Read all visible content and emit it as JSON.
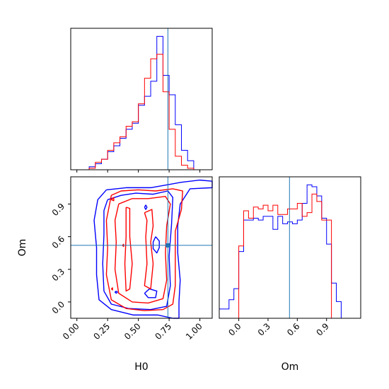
{
  "chart_data": [
    {
      "type": "histogram",
      "panel": "H0 marginal",
      "xlim": [
        -0.05,
        1.1
      ],
      "truth": 0.74,
      "bin_edges": [
        0.0,
        0.05,
        0.1,
        0.15,
        0.2,
        0.25,
        0.3,
        0.35,
        0.4,
        0.45,
        0.5,
        0.55,
        0.6,
        0.65,
        0.7,
        0.75,
        0.8,
        0.85,
        0.9,
        0.95,
        1.0
      ],
      "series": [
        {
          "color": "#0000ff",
          "counts": [
            0,
            0,
            2,
            4,
            7,
            12,
            16,
            21,
            27,
            31,
            43,
            49,
            59,
            89,
            63,
            50,
            30,
            13,
            6,
            0
          ]
        },
        {
          "color": "#ff0000",
          "counts": [
            0,
            0,
            1,
            5,
            7,
            13,
            18,
            22,
            29,
            32,
            44,
            61,
            74,
            77,
            52,
            27,
            9,
            3,
            1,
            0
          ]
        }
      ]
    },
    {
      "type": "contour",
      "panel": "H0 vs Om",
      "xlabel": "H0",
      "ylabel": "Om",
      "xlim": [
        -0.05,
        1.1
      ],
      "ylim": [
        -0.15,
        1.15
      ],
      "xticks": [
        "0.00",
        "0.25",
        "0.50",
        "0.75",
        "1.00"
      ],
      "xtick_values": [
        0.0,
        0.25,
        0.5,
        0.75,
        1.0
      ],
      "yticks": [
        "0.0",
        "0.3",
        "0.6",
        "0.9"
      ],
      "ytick_values": [
        0.0,
        0.3,
        0.6,
        0.9
      ],
      "truth": {
        "x": 0.74,
        "y": 0.52
      },
      "series": [
        {
          "color": "#0000ff",
          "contours": [
            [
              [
                0.24,
                1.03
              ],
              [
                0.4,
                1.05
              ],
              [
                0.6,
                1.05
              ],
              [
                0.75,
                1.08
              ],
              [
                0.85,
                1.1
              ],
              [
                1.0,
                1.12
              ],
              [
                1.1,
                1.11
              ],
              [
                1.1,
                1.05
              ],
              [
                0.92,
                1.04
              ],
              [
                0.84,
                0.9
              ],
              [
                0.82,
                0.7
              ],
              [
                0.82,
                0.45
              ],
              [
                0.84,
                0.2
              ],
              [
                0.83,
                0.0
              ],
              [
                0.83,
                -0.25
              ],
              [
                0.78,
                -0.15
              ],
              [
                0.66,
                -0.12
              ],
              [
                0.46,
                -0.12
              ],
              [
                0.28,
                -0.07
              ],
              [
                0.18,
                0.02
              ],
              [
                0.16,
                0.25
              ],
              [
                0.16,
                0.5
              ],
              [
                0.14,
                0.75
              ],
              [
                0.17,
                0.94
              ],
              [
                0.24,
                1.03
              ]
            ],
            [
              [
                0.25,
                0.94
              ],
              [
                0.36,
                0.98
              ],
              [
                0.48,
                1.0
              ],
              [
                0.62,
                0.99
              ],
              [
                0.74,
                1.02
              ],
              [
                0.78,
                0.96
              ],
              [
                0.77,
                0.72
              ],
              [
                0.75,
                0.42
              ],
              [
                0.76,
                0.15
              ],
              [
                0.73,
                -0.04
              ],
              [
                0.6,
                -0.07
              ],
              [
                0.42,
                -0.06
              ],
              [
                0.28,
                -0.02
              ],
              [
                0.22,
                0.1
              ],
              [
                0.21,
                0.35
              ],
              [
                0.22,
                0.62
              ],
              [
                0.22,
                0.84
              ],
              [
                0.25,
                0.94
              ]
            ],
            [
              [
                0.64,
                0.6
              ],
              [
                0.67,
                0.56
              ],
              [
                0.67,
                0.5
              ],
              [
                0.65,
                0.45
              ],
              [
                0.62,
                0.49
              ],
              [
                0.62,
                0.55
              ],
              [
                0.64,
                0.6
              ]
            ],
            [
              [
                0.55,
                0.87
              ],
              [
                0.56,
                0.89
              ],
              [
                0.57,
                0.87
              ],
              [
                0.56,
                0.85
              ],
              [
                0.55,
                0.87
              ]
            ],
            [
              [
                0.32,
                0.1
              ],
              [
                0.33,
                0.09
              ],
              [
                0.32,
                0.08
              ],
              [
                0.31,
                0.09
              ],
              [
                0.32,
                0.1
              ]
            ],
            [
              [
                0.55,
                0.08
              ],
              [
                0.59,
                0.12
              ],
              [
                0.65,
                0.1
              ],
              [
                0.64,
                0.04
              ],
              [
                0.58,
                0.04
              ],
              [
                0.55,
                0.08
              ]
            ]
          ]
        },
        {
          "color": "#ff0000",
          "contours": [
            [
              [
                0.28,
                0.98
              ],
              [
                0.36,
                1.02
              ],
              [
                0.5,
                1.03
              ],
              [
                0.64,
                1.02
              ],
              [
                0.78,
                1.04
              ],
              [
                0.86,
                1.02
              ],
              [
                0.85,
                0.85
              ],
              [
                0.8,
                0.65
              ],
              [
                0.8,
                0.4
              ],
              [
                0.8,
                0.15
              ],
              [
                0.78,
                -0.02
              ],
              [
                0.7,
                -0.07
              ],
              [
                0.55,
                -0.08
              ],
              [
                0.4,
                -0.06
              ],
              [
                0.28,
                0.02
              ],
              [
                0.24,
                0.25
              ],
              [
                0.25,
                0.5
              ],
              [
                0.24,
                0.75
              ],
              [
                0.28,
                0.98
              ]
            ],
            [
              [
                0.34,
                0.9
              ],
              [
                0.45,
                0.95
              ],
              [
                0.58,
                0.95
              ],
              [
                0.72,
                0.97
              ],
              [
                0.76,
                0.9
              ],
              [
                0.73,
                0.7
              ],
              [
                0.72,
                0.45
              ],
              [
                0.73,
                0.2
              ],
              [
                0.7,
                0.03
              ],
              [
                0.58,
                -0.01
              ],
              [
                0.45,
                0.0
              ],
              [
                0.34,
                0.08
              ],
              [
                0.31,
                0.3
              ],
              [
                0.32,
                0.55
              ],
              [
                0.31,
                0.75
              ],
              [
                0.34,
                0.9
              ]
            ],
            [
              [
                0.4,
                0.87
              ],
              [
                0.43,
                0.86
              ],
              [
                0.43,
                0.6
              ],
              [
                0.45,
                0.35
              ],
              [
                0.43,
                0.12
              ],
              [
                0.4,
                0.1
              ],
              [
                0.39,
                0.35
              ],
              [
                0.4,
                0.6
              ],
              [
                0.4,
                0.87
              ]
            ],
            [
              [
                0.55,
                0.82
              ],
              [
                0.61,
                0.85
              ],
              [
                0.62,
                0.7
              ],
              [
                0.6,
                0.55
              ],
              [
                0.62,
                0.35
              ],
              [
                0.6,
                0.12
              ],
              [
                0.55,
                0.15
              ],
              [
                0.57,
                0.35
              ],
              [
                0.56,
                0.6
              ],
              [
                0.57,
                0.75
              ],
              [
                0.55,
                0.82
              ]
            ],
            [
              [
                0.28,
                0.94
              ],
              [
                0.3,
                0.96
              ],
              [
                0.3,
                0.93
              ],
              [
                0.28,
                0.94
              ]
            ],
            [
              [
                0.37,
                0.52
              ],
              [
                0.38,
                0.53
              ],
              [
                0.38,
                0.51
              ],
              [
                0.37,
                0.52
              ]
            ],
            [
              [
                0.28,
                0.12
              ],
              [
                0.29,
                0.13
              ],
              [
                0.29,
                0.11
              ],
              [
                0.28,
                0.12
              ]
            ]
          ]
        }
      ]
    },
    {
      "type": "histogram",
      "panel": "Om marginal",
      "xlabel": "Om",
      "xlim": [
        -0.2,
        1.25
      ],
      "xticks": [
        "0.0",
        "0.3",
        "0.6",
        "0.9"
      ],
      "xtick_values": [
        0.0,
        0.3,
        0.6,
        0.9
      ],
      "truth": 0.52,
      "bin_edges": [
        -0.2,
        -0.1,
        -0.05,
        0.0,
        0.05,
        0.1,
        0.15,
        0.2,
        0.25,
        0.3,
        0.35,
        0.4,
        0.45,
        0.5,
        0.55,
        0.6,
        0.65,
        0.7,
        0.75,
        0.8,
        0.85,
        0.9,
        0.95,
        1.0,
        1.05,
        1.1,
        1.2
      ],
      "series": [
        {
          "color": "#0000ff",
          "counts": [
            5,
            10,
            16,
            36,
            53,
            53,
            54,
            53,
            55,
            55,
            48,
            55,
            51,
            52,
            51,
            53,
            62,
            72,
            71,
            66,
            54,
            40,
            19,
            9,
            0,
            0
          ]
        },
        {
          "color": "#ff0000",
          "counts": [
            0,
            0,
            0,
            39,
            58,
            54,
            60,
            59,
            61,
            58,
            61,
            56,
            56,
            59,
            59,
            62,
            55,
            57,
            67,
            63,
            53,
            53,
            0,
            0,
            0,
            0
          ]
        }
      ]
    }
  ]
}
